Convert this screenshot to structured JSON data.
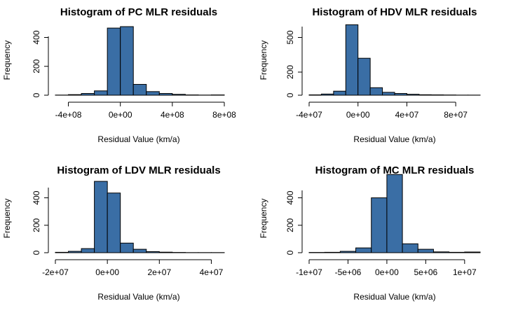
{
  "colors": {
    "bar_fill": "#3A6EA5",
    "bar_stroke": "#000000",
    "background": "#FFFFFF"
  },
  "chart_data": [
    {
      "type": "bar",
      "title": "Histogram of PC MLR residuals",
      "xlabel": "Residual Value (km/a)",
      "ylabel": "Frequency",
      "bin_edges": [
        -500000000,
        -400000000,
        -300000000,
        -200000000,
        -100000000,
        0,
        100000000,
        200000000,
        300000000,
        400000000,
        500000000,
        600000000,
        700000000,
        800000000
      ],
      "values": [
        1,
        4,
        12,
        30,
        465,
        475,
        75,
        25,
        12,
        6,
        2,
        1,
        2
      ],
      "xlim": [
        -500000000,
        800000000
      ],
      "ylim": [
        0,
        480
      ],
      "xticks": [
        -400000000,
        0,
        400000000,
        800000000
      ],
      "xtick_labels": [
        "-4e+08",
        "0e+00",
        "4e+08",
        "8e+08"
      ],
      "yticks": [
        0,
        200,
        400
      ],
      "ytick_labels": [
        "0",
        "200",
        "400"
      ]
    },
    {
      "type": "bar",
      "title": "Histogram of HDV MLR residuals",
      "xlabel": "Residual Value (km/a)",
      "ylabel": "Frequency",
      "bin_edges": [
        -40000000,
        -30000000,
        -20000000,
        -10000000,
        0,
        10000000,
        20000000,
        30000000,
        40000000,
        50000000,
        60000000,
        70000000,
        80000000,
        90000000,
        100000000
      ],
      "values": [
        3,
        10,
        35,
        610,
        320,
        65,
        25,
        15,
        8,
        4,
        3,
        2,
        1,
        1
      ],
      "xlim": [
        -40000000,
        100000000
      ],
      "ylim": [
        0,
        600
      ],
      "xticks": [
        -40000000,
        0,
        40000000,
        80000000
      ],
      "xtick_labels": [
        "-4e+07",
        "0e+00",
        "4e+07",
        "8e+07"
      ],
      "yticks": [
        0,
        200,
        500
      ],
      "ytick_labels": [
        "0",
        "200",
        "500"
      ]
    },
    {
      "type": "bar",
      "title": "Histogram of LDV MLR residuals",
      "xlabel": "Residual Value (km/a)",
      "ylabel": "Frequency",
      "bin_edges": [
        -20000000,
        -15000000,
        -10000000,
        -5000000,
        0,
        5000000,
        10000000,
        15000000,
        20000000,
        25000000,
        30000000,
        35000000,
        40000000,
        45000000
      ],
      "values": [
        3,
        10,
        30,
        520,
        435,
        70,
        25,
        8,
        4,
        2,
        1,
        1,
        1
      ],
      "xlim": [
        -20000000,
        45000000
      ],
      "ylim": [
        0,
        500
      ],
      "xticks": [
        -20000000,
        0,
        20000000,
        40000000
      ],
      "xtick_labels": [
        "-2e+07",
        "0e+00",
        "2e+07",
        "4e+07"
      ],
      "yticks": [
        0,
        200,
        400
      ],
      "ytick_labels": [
        "0",
        "200",
        "400"
      ]
    },
    {
      "type": "bar",
      "title": "Histogram of MC MLR residuals",
      "xlabel": "Residual Value (km/a)",
      "ylabel": "Frequency",
      "bin_edges": [
        -10000000,
        -8000000,
        -6000000,
        -4000000,
        -2000000,
        0,
        2000000,
        4000000,
        6000000,
        8000000,
        10000000,
        12000000
      ],
      "values": [
        2,
        3,
        10,
        35,
        400,
        570,
        65,
        25,
        6,
        3,
        5
      ],
      "xlim": [
        -10000000,
        12000000
      ],
      "ylim": [
        0,
        500
      ],
      "xticks": [
        -10000000,
        -5000000,
        0,
        5000000,
        10000000
      ],
      "xtick_labels": [
        "-1e+07",
        "-5e+06",
        "0e+00",
        "5e+06",
        "1e+07"
      ],
      "yticks": [
        0,
        200,
        400
      ],
      "ytick_labels": [
        "0",
        "200",
        "400"
      ]
    }
  ]
}
